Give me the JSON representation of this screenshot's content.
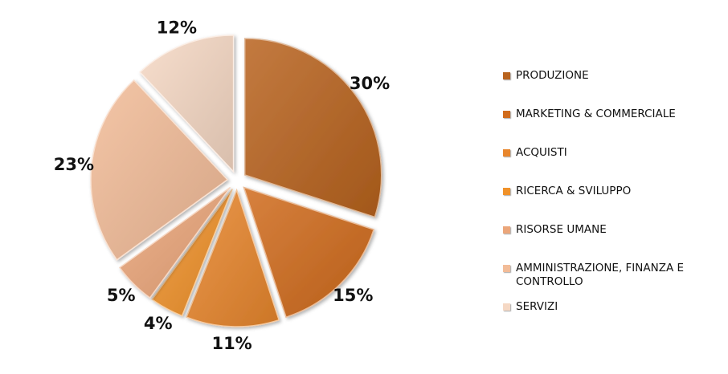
{
  "chart_data": {
    "type": "pie",
    "categories": [
      "PRODUZIONE",
      "MARKETING & COMMERCIALE",
      "ACQUISTI",
      "RICERCA & SVILUPPO",
      "RISORSE UMANE",
      "AMMINISTRAZIONE, FINANZA E CONTROLLO",
      "SERVIZI"
    ],
    "values": [
      30,
      15,
      11,
      4,
      5,
      23,
      12
    ],
    "data_labels": [
      "30%",
      "15%",
      "11%",
      "4%",
      "5%",
      "23%",
      "12%"
    ],
    "colors": [
      "#b8631e",
      "#d06b1c",
      "#e8862c",
      "#f0922a",
      "#eba67a",
      "#f2bc98",
      "#f5d8c4"
    ],
    "exploded": true,
    "legend_position": "right"
  }
}
